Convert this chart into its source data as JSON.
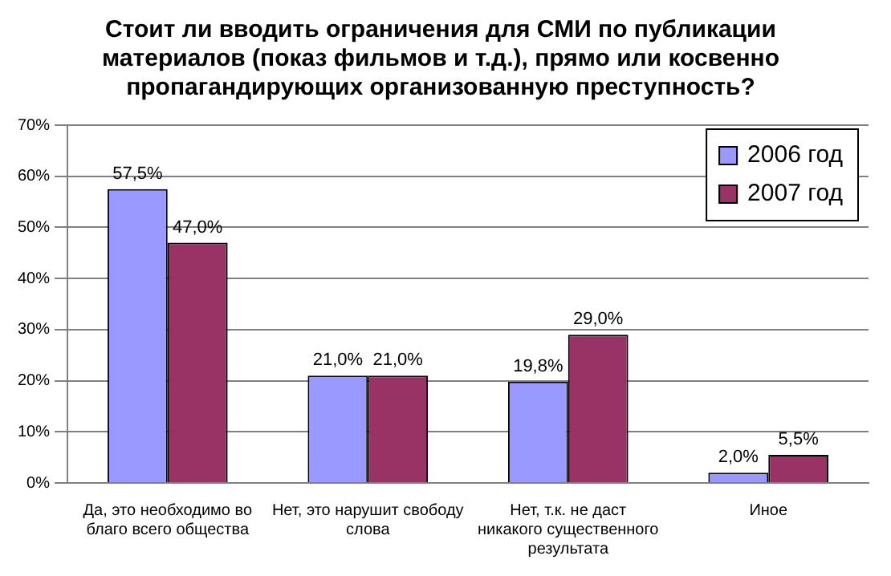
{
  "chart_data": {
    "type": "bar",
    "title": "Стоит ли вводить ограничения для СМИ по публикации материалов (показ фильмов и т.д.), прямо или косвенно пропагандирующих организованную преступность?",
    "categories": [
      "Да, это необходимо во благо всего общества",
      "Нет, это нарушит свободу слова",
      "Нет, т.к. не даст никакого существенного результата",
      "Иное"
    ],
    "series": [
      {
        "name": "2006 год",
        "color": "#9999ff",
        "values": [
          57.5,
          21.0,
          19.8,
          2.0
        ],
        "value_labels": [
          "57,5%",
          "21,0%",
          "19,8%",
          "2,0%"
        ]
      },
      {
        "name": "2007 год",
        "color": "#993366",
        "values": [
          47.0,
          21.0,
          29.0,
          5.5
        ],
        "value_labels": [
          "47,0%",
          "21,0%",
          "29,0%",
          "5,5%"
        ]
      }
    ],
    "ylim": [
      0,
      70
    ],
    "yticks": [
      {
        "value": 0,
        "label": "0%"
      },
      {
        "value": 10,
        "label": "10%"
      },
      {
        "value": 20,
        "label": "20%"
      },
      {
        "value": 30,
        "label": "30%"
      },
      {
        "value": 40,
        "label": "40%"
      },
      {
        "value": 50,
        "label": "50%"
      },
      {
        "value": 60,
        "label": "60%"
      },
      {
        "value": 70,
        "label": "70%"
      }
    ],
    "grid": "y",
    "legend": "top right"
  }
}
